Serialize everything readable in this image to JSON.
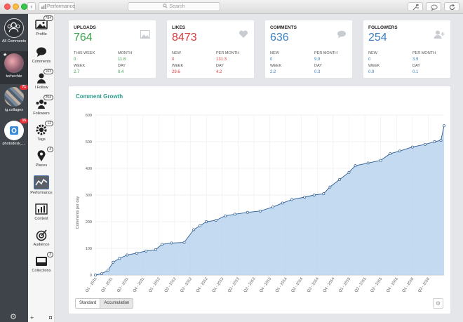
{
  "window": {
    "breadcrumb": "Performance",
    "search_placeholder": "Search"
  },
  "accounts": [
    {
      "label": "All Comments",
      "badge": ""
    },
    {
      "label": "terhechte",
      "badge": ""
    },
    {
      "label": "ig.collages",
      "badge": "71"
    },
    {
      "label": "photodesk_...",
      "badge": "15"
    }
  ],
  "menu": [
    {
      "label": "Profile",
      "count": "784"
    },
    {
      "label": "Comments",
      "count": ""
    },
    {
      "label": "I Follow",
      "count": "163"
    },
    {
      "label": "Followers",
      "count": "254"
    },
    {
      "label": "Tags",
      "count": "12"
    },
    {
      "label": "Places",
      "count": "4"
    },
    {
      "label": "Performance",
      "count": ""
    },
    {
      "label": "Content",
      "count": ""
    },
    {
      "label": "Audience",
      "count": ""
    },
    {
      "label": "Collections",
      "count": "3"
    }
  ],
  "cards": [
    {
      "title": "UPLOADS",
      "value": "764",
      "color": "#3aa04b",
      "stats": [
        {
          "label": "THIS WEEK",
          "value": "0"
        },
        {
          "label": "MONTH",
          "value": "11.8"
        },
        {
          "label": "WEEK",
          "value": "2.7"
        },
        {
          "label": "DAY",
          "value": "0.4"
        }
      ]
    },
    {
      "title": "LIKES",
      "value": "8473",
      "color": "#d9383a",
      "stats": [
        {
          "label": "NEW",
          "value": "0"
        },
        {
          "label": "PER MONTH",
          "value": "131.3"
        },
        {
          "label": "WEEK",
          "value": "29.6"
        },
        {
          "label": "DAY",
          "value": "4.2"
        }
      ]
    },
    {
      "title": "COMMENTS",
      "value": "636",
      "color": "#3a7fc0",
      "stats": [
        {
          "label": "NEW",
          "value": "0"
        },
        {
          "label": "PER MONTH",
          "value": "9.9"
        },
        {
          "label": "WEEK",
          "value": "2.2"
        },
        {
          "label": "DAY",
          "value": "0.3"
        }
      ]
    },
    {
      "title": "FOLLOWERS",
      "value": "254",
      "color": "#3a7fc0",
      "stats": [
        {
          "label": "NEW",
          "value": "0"
        },
        {
          "label": "PER MONTH",
          "value": "3.9"
        },
        {
          "label": "WEEK",
          "value": "0.9"
        },
        {
          "label": "DAY",
          "value": "0.1"
        }
      ]
    }
  ],
  "chart": {
    "title": "Comment Growth",
    "ylabel": "Comments per day",
    "buttons": [
      "Standard",
      "Accumulation"
    ],
    "active_button": "Accumulation"
  },
  "chart_data": {
    "type": "area",
    "title": "Comment Growth",
    "ylabel": "Comments per day",
    "ylim": [
      0,
      600
    ],
    "yticks": [
      0,
      100,
      200,
      300,
      400,
      500,
      600
    ],
    "xlim": [
      2011.0,
      2016.5
    ],
    "categories": [
      "Q1 - 2011",
      "Q2 - 2011",
      "Q3 - 2011",
      "Q4 - 2011",
      "Q1 - 2012",
      "Q2 - 2012",
      "Q3 - 2012",
      "Q4 - 2012",
      "Q1 - 2013",
      "Q2 - 2013",
      "Q3 - 2013",
      "Q4 - 2013",
      "Q1 - 2014",
      "Q2 - 2014",
      "Q3 - 2014",
      "Q4 - 2014",
      "Q1 - 2015",
      "Q2 - 2015",
      "Q3 - 2015",
      "Q4 - 2015",
      "Q1 - 2016",
      "Q2 - 2016"
    ],
    "x": [
      2011.0,
      2011.1,
      2011.2,
      2011.28,
      2011.38,
      2011.5,
      2011.65,
      2011.8,
      2011.95,
      2012.05,
      2012.2,
      2012.4,
      2012.55,
      2012.65,
      2012.75,
      2012.9,
      2013.05,
      2013.2,
      2013.4,
      2013.6,
      2013.8,
      2013.95,
      2014.1,
      2014.3,
      2014.45,
      2014.6,
      2014.7,
      2014.85,
      2015.0,
      2015.1,
      2015.3,
      2015.5,
      2015.65,
      2015.8,
      2016.0,
      2016.2,
      2016.35,
      2016.45,
      2016.5
    ],
    "values": [
      0,
      5,
      18,
      48,
      62,
      75,
      82,
      90,
      95,
      115,
      120,
      122,
      170,
      185,
      200,
      205,
      222,
      228,
      235,
      240,
      255,
      270,
      283,
      292,
      300,
      305,
      330,
      358,
      385,
      410,
      420,
      430,
      455,
      465,
      480,
      490,
      500,
      505,
      560
    ]
  }
}
